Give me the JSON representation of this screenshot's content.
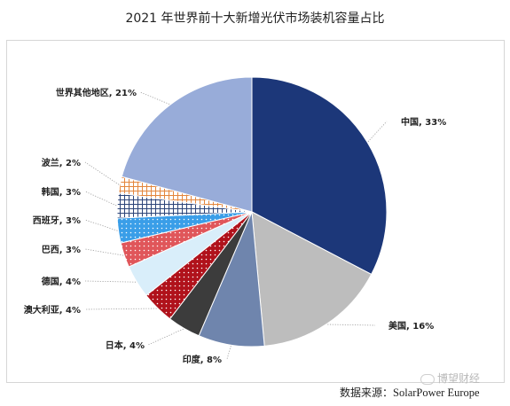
{
  "title": "2021 年世界前十大新增光伏市场装机容量占比",
  "source": {
    "label": "数据来源：",
    "value": "SolarPower Europe"
  },
  "watermark": "博望财经",
  "chart_data": {
    "type": "pie",
    "unit": "%",
    "slices": [
      {
        "name": "中国",
        "value": 33,
        "label": "中国, 33%",
        "color": "#1c3779",
        "pattern": "solid"
      },
      {
        "name": "美国",
        "value": 16,
        "label": "美国, 16%",
        "color": "#bdbdbd",
        "pattern": "solid"
      },
      {
        "name": "印度",
        "value": 8,
        "label": "印度, 8%",
        "color": "#6f85ad",
        "pattern": "solid"
      },
      {
        "name": "日本",
        "value": 4,
        "label": "日本, 4%",
        "color": "#3c3c3c",
        "pattern": "solid"
      },
      {
        "name": "澳大利亚",
        "value": 4,
        "label": "澳大利亚, 4%",
        "color": "#b0121b",
        "pattern": "dots-white"
      },
      {
        "name": "德国",
        "value": 4,
        "label": "德国, 4%",
        "color": "#d9eefa",
        "pattern": "solid"
      },
      {
        "name": "巴西",
        "value": 3,
        "label": "巴西, 3%",
        "color": "#e0565a",
        "pattern": "dots-white"
      },
      {
        "name": "西班牙",
        "value": 3,
        "label": "西班牙, 3%",
        "color": "#3a9ee8",
        "pattern": "dots-white"
      },
      {
        "name": "韩国",
        "value": 3,
        "label": "韩国, 3%",
        "color": "#2c4478",
        "pattern": "grid"
      },
      {
        "name": "波兰",
        "value": 2,
        "label": "波兰, 2%",
        "color": "#e3863d",
        "pattern": "grid"
      },
      {
        "name": "世界其他地区",
        "value": 21,
        "label": "世界其他地区, 21%",
        "color": "#98acd9",
        "pattern": "solid"
      }
    ]
  }
}
